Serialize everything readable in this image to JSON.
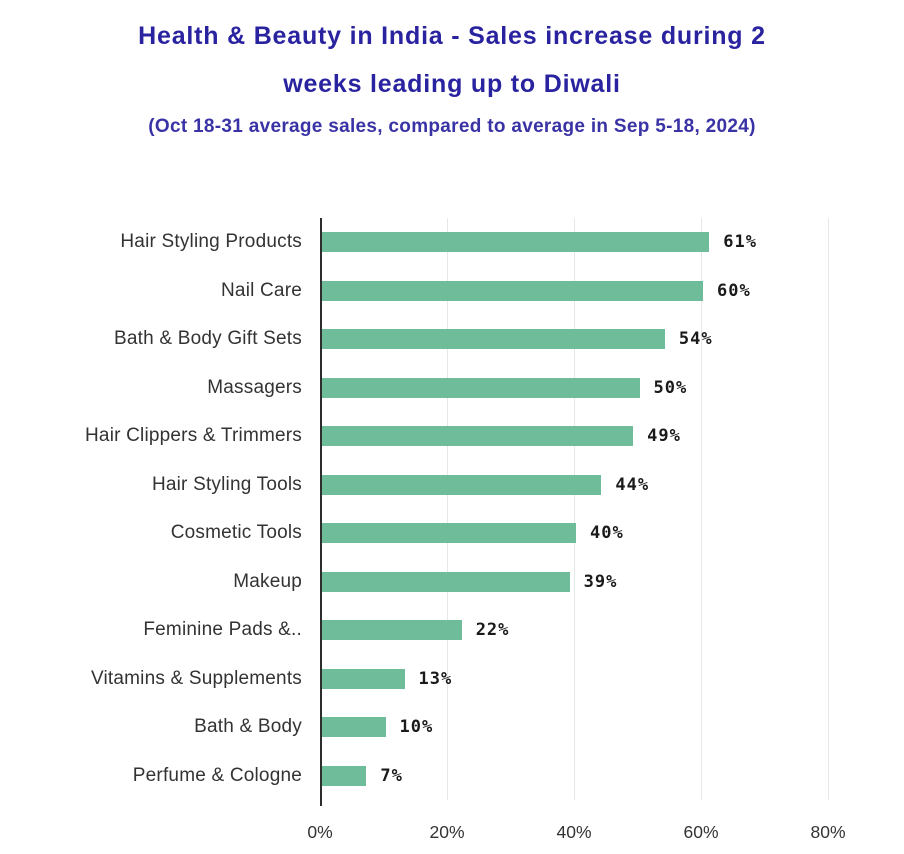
{
  "header": {
    "title_line1": "Health & Beauty in India - Sales increase during 2",
    "title_line2": "weeks leading up to Diwali",
    "subtitle": "(Oct 18-31 average sales, compared to average in Sep 5-18, 2024)"
  },
  "colors": {
    "title": "#2a23a0",
    "subtitle": "#3a33a6",
    "bar": "#6fbc9a",
    "grid": "#e7e7e7",
    "axis": "#2d2d2d",
    "category_label": "#333333",
    "value_label": "#1a1a1a",
    "tick_label": "#333333"
  },
  "chart_data": {
    "type": "bar",
    "orientation": "horizontal",
    "title": "Health & Beauty in India - Sales increase during 2 weeks leading up to Diwali",
    "subtitle": "(Oct 18-31 average sales, compared to average in Sep 5-18, 2024)",
    "categories": [
      "Hair Styling Products",
      "Nail Care",
      "Bath & Body Gift Sets",
      "Massagers",
      "Hair Clippers & Trimmers",
      "Hair Styling Tools",
      "Cosmetic Tools",
      "Makeup",
      "Feminine Pads &..",
      "Vitamins & Supplements",
      "Bath & Body",
      "Perfume & Cologne"
    ],
    "values": [
      61,
      60,
      54,
      50,
      49,
      44,
      40,
      39,
      22,
      13,
      10,
      7
    ],
    "value_suffix": "%",
    "x_ticks": [
      "0%",
      "20%",
      "40%",
      "60%",
      "80%"
    ],
    "x_tick_values": [
      0,
      20,
      40,
      60,
      80
    ],
    "xlim": [
      0,
      85
    ],
    "grid": true,
    "legend": false
  }
}
